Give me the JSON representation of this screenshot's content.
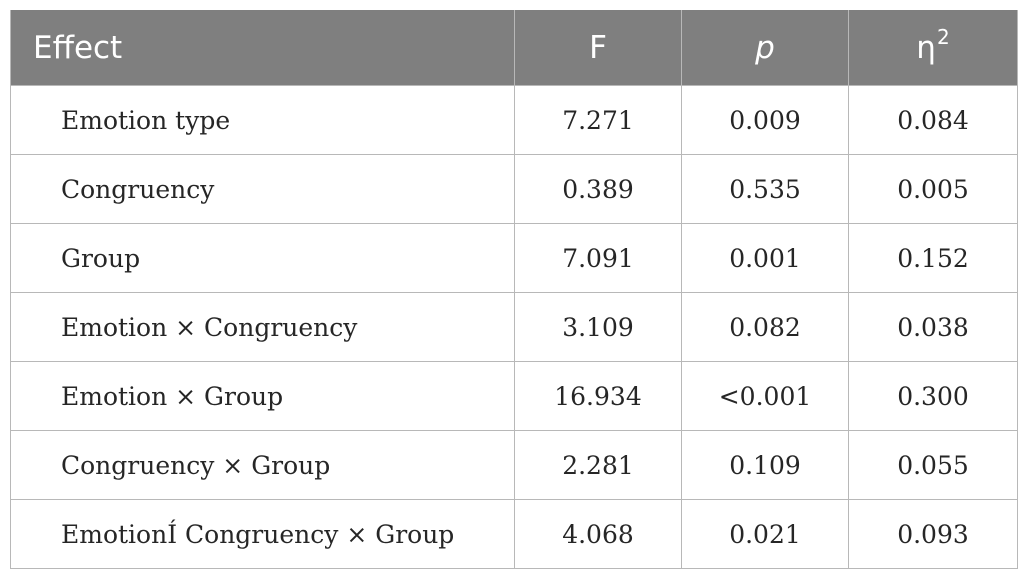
{
  "table": {
    "headers": {
      "effect": "Effect",
      "f": "F",
      "p": "p",
      "eta_base": "η",
      "eta_sup": "2"
    },
    "rows": [
      {
        "effect": "Emotion type",
        "f": "7.271",
        "p": "0.009",
        "eta": "0.084"
      },
      {
        "effect": "Congruency",
        "f": "0.389",
        "p": "0.535",
        "eta": "0.005"
      },
      {
        "effect": "Group",
        "f": "7.091",
        "p": "0.001",
        "eta": "0.152"
      },
      {
        "effect": "Emotion × Congruency",
        "f": "3.109",
        "p": "0.082",
        "eta": "0.038"
      },
      {
        "effect": "Emotion × Group",
        "f": "16.934",
        "p": "<0.001",
        "eta": "0.300"
      },
      {
        "effect": "Congruency × Group",
        "f": "2.281",
        "p": "0.109",
        "eta": "0.055"
      },
      {
        "effect": "EmotionÍ Congruency × Group",
        "f": "4.068",
        "p": "0.021",
        "eta": "0.093"
      }
    ]
  },
  "colors": {
    "header_bg": "#7f7f7f",
    "header_text": "#ffffff",
    "grid": "#b8b8b8",
    "body_text": "#262626"
  }
}
